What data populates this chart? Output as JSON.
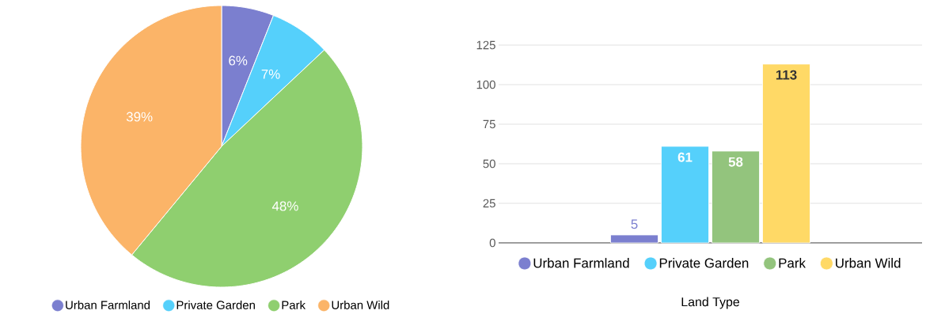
{
  "chart_data": [
    {
      "type": "pie",
      "categories": [
        "Urban Farmland",
        "Private Garden",
        "Park",
        "Urban Wild"
      ],
      "values": [
        6,
        7,
        48,
        39
      ],
      "colors": [
        "#7b7fcf",
        "#55d0fb",
        "#8fcf6f",
        "#fbb468"
      ],
      "value_labels": [
        "6%",
        "7%",
        "48%",
        "39%"
      ],
      "legend": "bottom"
    },
    {
      "type": "bar",
      "categories": [
        null
      ],
      "series": [
        {
          "name": "Urban Farmland",
          "color": "#7b7fcf",
          "values": [
            5
          ]
        },
        {
          "name": "Private Garden",
          "color": "#55d0fb",
          "values": [
            61
          ]
        },
        {
          "name": "Park",
          "color": "#93c47d",
          "values": [
            58
          ]
        },
        {
          "name": "Urban Wild",
          "color": "#ffd966",
          "values": [
            113
          ]
        }
      ],
      "ylim": [
        0,
        125
      ],
      "yticks": [
        0,
        25,
        50,
        75,
        100,
        125
      ],
      "grid": "y",
      "data_labels": true,
      "legend": "bottom",
      "xlabel": "Land Type"
    }
  ]
}
